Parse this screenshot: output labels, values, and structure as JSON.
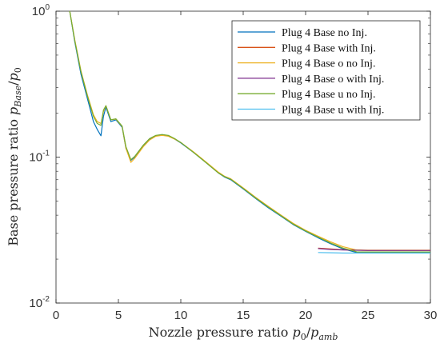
{
  "chart_data": {
    "type": "line",
    "xlabel": "Nozzle pressure ratio p0/pamb",
    "xlabel_parts": {
      "prefix": "Nozzle pressure ratio ",
      "var1": "p",
      "sub1": "0",
      "slash": "/",
      "var2": "p",
      "sub2": "amb"
    },
    "ylabel": "Base pressure ratio pBase/p0",
    "ylabel_parts": {
      "prefix": "Base pressure ratio ",
      "var1": "p",
      "sub1": "Base",
      "slash": "/",
      "var2": "p",
      "sub2": "0"
    },
    "xlim": [
      0,
      30
    ],
    "ylim": [
      0.01,
      1
    ],
    "yscale": "log",
    "grid": false,
    "legend_position": "top-right",
    "x_ticks": [
      0,
      5,
      10,
      15,
      20,
      25,
      30
    ],
    "x_tick_labels": [
      "0",
      "5",
      "10",
      "15",
      "20",
      "25",
      "30"
    ],
    "y_ticks": [
      {
        "value": 1,
        "base": "10",
        "exp": "0"
      },
      {
        "value": 0.1,
        "base": "10",
        "exp": "-1"
      },
      {
        "value": 0.01,
        "base": "10",
        "exp": "-2"
      }
    ],
    "series": [
      {
        "name": "Plug 4 Base no Inj.",
        "color": "#0072BD",
        "x": [
          1.1,
          1.5,
          2.0,
          2.5,
          3.0,
          3.3,
          3.6,
          3.8,
          4.0,
          4.4,
          4.8,
          5.3,
          5.6,
          6.0,
          6.3,
          7.0,
          7.5,
          8.0,
          8.5,
          9.0,
          9.5,
          10.0,
          11.0,
          12.0,
          13.0,
          13.5,
          14.0,
          15.0,
          16.0,
          17.0,
          18.0,
          19.0,
          20.0,
          21.0,
          22.0,
          23.0,
          24.0,
          24.1,
          25.0,
          26.0,
          27.0,
          28.0,
          29.0,
          30.0
        ],
        "y": [
          1.0,
          0.62,
          0.37,
          0.255,
          0.175,
          0.155,
          0.14,
          0.19,
          0.22,
          0.175,
          0.18,
          0.16,
          0.115,
          0.095,
          0.1,
          0.12,
          0.133,
          0.14,
          0.142,
          0.14,
          0.133,
          0.125,
          0.108,
          0.092,
          0.078,
          0.073,
          0.07,
          0.0605,
          0.052,
          0.045,
          0.0395,
          0.0345,
          0.031,
          0.028,
          0.0255,
          0.0235,
          0.0223,
          0.0221,
          0.0221,
          0.0222,
          0.0221,
          0.0222,
          0.0221,
          0.0222
        ]
      },
      {
        "name": "Plug 4 Base with Inj.",
        "color": "#D95319",
        "x": [
          21.0,
          22.0,
          23.0,
          24.0,
          25.0,
          26.0,
          27.0,
          28.0,
          29.0,
          30.0
        ],
        "y": [
          0.0238,
          0.0235,
          0.0232,
          0.0231,
          0.023,
          0.023,
          0.023,
          0.023,
          0.023,
          0.023
        ]
      },
      {
        "name": "Plug 4 Base o no Inj.",
        "color": "#EDB120",
        "x": [
          1.1,
          1.5,
          2.0,
          2.5,
          3.0,
          3.3,
          3.6,
          3.8,
          4.0,
          4.4,
          4.8,
          5.3,
          5.6,
          6.0,
          6.3,
          7.0,
          7.5,
          8.0,
          8.5,
          9.0,
          9.5,
          10.0,
          11.0,
          12.0,
          13.0,
          13.5,
          14.0,
          15.0,
          16.0,
          17.0,
          18.0,
          19.0,
          20.0,
          21.0,
          22.0,
          23.0,
          24.0,
          24.5,
          25.0,
          26.0,
          27.0,
          28.0,
          29.0,
          30.0
        ],
        "y": [
          1.0,
          0.64,
          0.39,
          0.27,
          0.195,
          0.175,
          0.17,
          0.205,
          0.225,
          0.18,
          0.182,
          0.162,
          0.115,
          0.092,
          0.098,
          0.118,
          0.131,
          0.139,
          0.141,
          0.139,
          0.133,
          0.126,
          0.109,
          0.093,
          0.079,
          0.074,
          0.071,
          0.0615,
          0.053,
          0.046,
          0.0402,
          0.0352,
          0.0315,
          0.0287,
          0.0263,
          0.0243,
          0.0232,
          0.023,
          0.0229,
          0.0229,
          0.0229,
          0.0229,
          0.0229,
          0.0229
        ]
      },
      {
        "name": "Plug 4 Base o with Inj.",
        "color": "#7E2F8E",
        "x": [
          21.0,
          22.0,
          23.0,
          24.0,
          25.0,
          26.0,
          27.0,
          28.0,
          29.0,
          30.0
        ],
        "y": [
          0.0236,
          0.0233,
          0.0231,
          0.023,
          0.0229,
          0.0229,
          0.0229,
          0.0229,
          0.0229,
          0.0229
        ]
      },
      {
        "name": "Plug 4 Base u no Inj.",
        "color": "#77AC30",
        "x": [
          1.1,
          1.5,
          2.0,
          2.5,
          3.0,
          3.3,
          3.6,
          3.8,
          4.0,
          4.4,
          4.8,
          5.3,
          5.6,
          6.0,
          6.3,
          7.0,
          7.5,
          8.0,
          8.5,
          9.0,
          9.5,
          10.0,
          11.0,
          12.0,
          13.0,
          13.5,
          14.0,
          15.0,
          16.0,
          17.0,
          18.0,
          19.0,
          20.0,
          21.0,
          22.0,
          23.0,
          24.0,
          24.1,
          25.0,
          26.0,
          27.0,
          28.0,
          29.0,
          30.0
        ],
        "y": [
          1.0,
          0.63,
          0.385,
          0.265,
          0.19,
          0.17,
          0.165,
          0.21,
          0.225,
          0.18,
          0.183,
          0.163,
          0.118,
          0.096,
          0.101,
          0.121,
          0.134,
          0.141,
          0.143,
          0.141,
          0.134,
          0.126,
          0.108,
          0.092,
          0.078,
          0.0735,
          0.0705,
          0.061,
          0.0525,
          0.0455,
          0.0398,
          0.0348,
          0.0312,
          0.0283,
          0.0258,
          0.0238,
          0.0226,
          0.0224,
          0.0224,
          0.0224,
          0.0224,
          0.0224,
          0.0224,
          0.0224
        ]
      },
      {
        "name": "Plug 4 Base u with Inj.",
        "color": "#4DBEEE",
        "x": [
          21.0,
          22.0,
          23.0,
          24.0,
          25.0,
          26.0,
          27.0,
          28.0,
          29.0,
          30.0
        ],
        "y": [
          0.0222,
          0.0221,
          0.022,
          0.022,
          0.022,
          0.022,
          0.022,
          0.022,
          0.022,
          0.022
        ]
      }
    ]
  }
}
